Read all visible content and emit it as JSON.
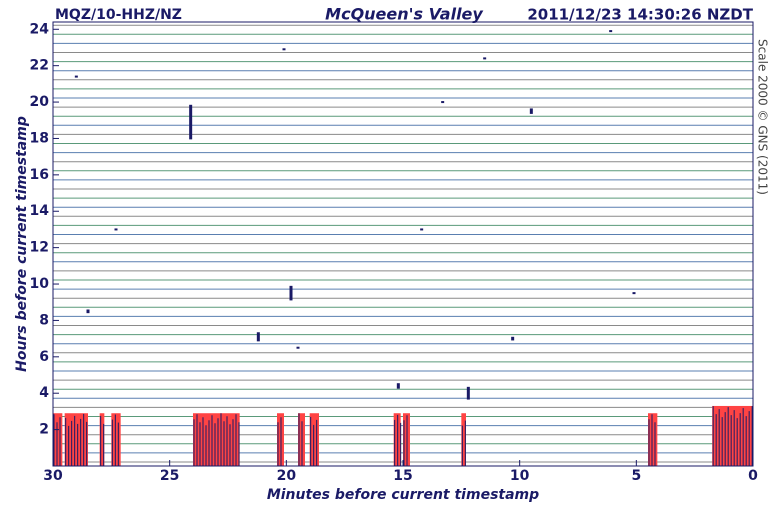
{
  "chart_data": {
    "type": "helicorder",
    "station": "MQZ/10-HHZ/NZ",
    "title": "McQueen's Valley",
    "timestamp": "2011/12/23 14:30:26 NZDT",
    "x_label": "Minutes before current timestamp",
    "y_label": "Hours before current timestamp",
    "side_note": "Scale 2000 © GNS (2011)",
    "xlim": [
      30,
      0
    ],
    "ylim": [
      0,
      24.4
    ],
    "xticks": [
      30,
      25,
      20,
      15,
      10,
      5,
      0
    ],
    "yticks": [
      2,
      4,
      6,
      8,
      10,
      12,
      14,
      16,
      18,
      20,
      22,
      24
    ],
    "trace_color": "#1a1a66",
    "clip_color": "#ff4444",
    "events": {
      "x": [
        29,
        24.1,
        20.1,
        11.5,
        9.5,
        13.3,
        6.1,
        27.3,
        14.2,
        19.8,
        28.5,
        5.1,
        21.2,
        10.3,
        19.5,
        15.2,
        12.2
      ],
      "y": [
        21.4,
        18.9,
        22.9,
        22.4,
        19.5,
        20,
        23.9,
        13,
        13,
        9.5,
        8.5,
        9.5,
        7.1,
        7,
        6.5,
        4.4,
        4
      ],
      "size": [
        0.1,
        1.9,
        0.1,
        0.1,
        0.3,
        0.05,
        0.05,
        0.05,
        0.05,
        0.8,
        0.2,
        0.1,
        0.5,
        0.2,
        0.1,
        0.3,
        0.7
      ]
    },
    "clipped": {
      "start": [
        30,
        29.5,
        28,
        27.5,
        24,
        20.4,
        19.5,
        19,
        15.4,
        15,
        12.5,
        4.5,
        1.75
      ],
      "end": [
        29.6,
        28.5,
        27.8,
        27.1,
        22,
        20.1,
        19.2,
        18.6,
        15.1,
        14.7,
        12.3,
        4.1,
        0
      ],
      "height": [
        2.9,
        2.9,
        2.9,
        2.9,
        2.9,
        2.9,
        2.9,
        2.9,
        2.9,
        2.9,
        2.9,
        2.9,
        3.3
      ]
    }
  }
}
